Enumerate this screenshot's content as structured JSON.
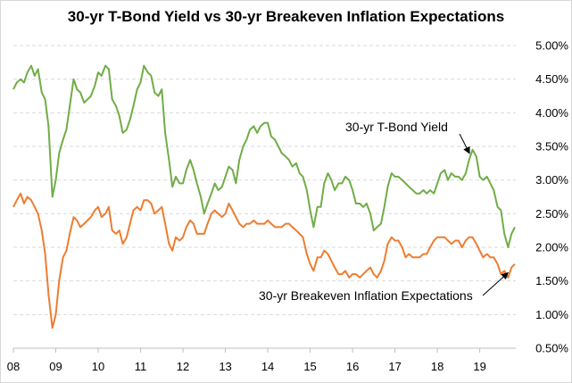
{
  "chart_data": {
    "type": "line",
    "title": "30-yr T-Bond Yield vs 30-yr Breakeven Inflation Expectations",
    "xlabel": "",
    "ylabel": "",
    "x_tick_labels": [
      "08",
      "09",
      "10",
      "11",
      "12",
      "13",
      "14",
      "15",
      "16",
      "17",
      "18",
      "19"
    ],
    "y_tick_labels": [
      "0.50%",
      "1.00%",
      "1.50%",
      "2.00%",
      "2.50%",
      "3.00%",
      "3.50%",
      "4.00%",
      "4.50%",
      "5.00%"
    ],
    "y_ticks": [
      0.5,
      1.0,
      1.5,
      2.0,
      2.5,
      3.0,
      3.5,
      4.0,
      4.5,
      5.0
    ],
    "xlim": [
      2008.0,
      2019.85
    ],
    "ylim": [
      0.5,
      5.0
    ],
    "grid": "horizontal dashed",
    "legend": "none (direct annotations)",
    "colors": {
      "bond": "#70ad47",
      "breakeven": "#ed7d31"
    },
    "series": [
      {
        "name": "30-yr T-Bond Yield",
        "x": [
          2008.0,
          2008.08,
          2008.17,
          2008.25,
          2008.33,
          2008.42,
          2008.5,
          2008.58,
          2008.67,
          2008.75,
          2008.83,
          2008.92,
          2009.0,
          2009.08,
          2009.17,
          2009.25,
          2009.33,
          2009.42,
          2009.5,
          2009.58,
          2009.67,
          2009.75,
          2009.83,
          2009.92,
          2010.0,
          2010.08,
          2010.17,
          2010.25,
          2010.33,
          2010.42,
          2010.5,
          2010.58,
          2010.67,
          2010.75,
          2010.83,
          2010.92,
          2011.0,
          2011.08,
          2011.17,
          2011.25,
          2011.33,
          2011.42,
          2011.5,
          2011.58,
          2011.67,
          2011.75,
          2011.83,
          2011.92,
          2012.0,
          2012.08,
          2012.17,
          2012.25,
          2012.33,
          2012.42,
          2012.5,
          2012.58,
          2012.67,
          2012.75,
          2012.83,
          2012.92,
          2013.0,
          2013.08,
          2013.17,
          2013.25,
          2013.33,
          2013.42,
          2013.5,
          2013.58,
          2013.67,
          2013.75,
          2013.83,
          2013.92,
          2014.0,
          2014.08,
          2014.17,
          2014.25,
          2014.33,
          2014.42,
          2014.5,
          2014.58,
          2014.67,
          2014.75,
          2014.83,
          2014.92,
          2015.0,
          2015.08,
          2015.17,
          2015.25,
          2015.33,
          2015.42,
          2015.5,
          2015.58,
          2015.67,
          2015.75,
          2015.83,
          2015.92,
          2016.0,
          2016.08,
          2016.17,
          2016.25,
          2016.33,
          2016.42,
          2016.5,
          2016.58,
          2016.67,
          2016.75,
          2016.83,
          2016.92,
          2017.0,
          2017.08,
          2017.17,
          2017.25,
          2017.33,
          2017.42,
          2017.5,
          2017.58,
          2017.67,
          2017.75,
          2017.83,
          2017.92,
          2018.0,
          2018.08,
          2018.17,
          2018.25,
          2018.33,
          2018.42,
          2018.5,
          2018.58,
          2018.67,
          2018.75,
          2018.83,
          2018.92,
          2019.0,
          2019.08,
          2019.17,
          2019.25,
          2019.33,
          2019.42,
          2019.5,
          2019.58,
          2019.67,
          2019.75,
          2019.83
        ],
        "values": [
          4.35,
          4.45,
          4.5,
          4.45,
          4.6,
          4.7,
          4.55,
          4.65,
          4.3,
          4.2,
          3.8,
          2.75,
          3.0,
          3.4,
          3.6,
          3.75,
          4.1,
          4.5,
          4.35,
          4.3,
          4.15,
          4.2,
          4.25,
          4.4,
          4.6,
          4.55,
          4.7,
          4.65,
          4.2,
          4.1,
          3.95,
          3.7,
          3.75,
          3.9,
          4.1,
          4.35,
          4.45,
          4.7,
          4.6,
          4.55,
          4.3,
          4.25,
          4.35,
          3.7,
          3.3,
          2.9,
          3.05,
          2.95,
          2.95,
          3.15,
          3.3,
          3.15,
          2.95,
          2.75,
          2.5,
          2.65,
          2.8,
          2.95,
          2.85,
          2.9,
          3.05,
          3.2,
          3.15,
          2.95,
          3.3,
          3.5,
          3.6,
          3.75,
          3.8,
          3.7,
          3.8,
          3.85,
          3.85,
          3.65,
          3.6,
          3.5,
          3.4,
          3.35,
          3.3,
          3.2,
          3.25,
          3.1,
          3.05,
          2.85,
          2.55,
          2.3,
          2.6,
          2.6,
          2.95,
          3.1,
          3.0,
          2.85,
          2.95,
          2.95,
          3.05,
          3.0,
          2.85,
          2.65,
          2.65,
          2.6,
          2.65,
          2.5,
          2.25,
          2.3,
          2.35,
          2.6,
          2.9,
          3.1,
          3.05,
          3.05,
          3.0,
          2.95,
          2.9,
          2.85,
          2.8,
          2.8,
          2.85,
          2.8,
          2.85,
          2.8,
          2.95,
          3.1,
          3.15,
          3.0,
          3.1,
          3.05,
          3.05,
          3.0,
          3.1,
          3.3,
          3.45,
          3.35,
          3.05,
          3.0,
          3.05,
          2.95,
          2.85,
          2.6,
          2.55,
          2.2,
          2.0,
          2.2,
          2.3
        ]
      },
      {
        "name": "30-yr Breakeven Inflation Expectations",
        "x": [
          2008.0,
          2008.08,
          2008.17,
          2008.25,
          2008.33,
          2008.42,
          2008.5,
          2008.58,
          2008.67,
          2008.75,
          2008.83,
          2008.92,
          2009.0,
          2009.08,
          2009.17,
          2009.25,
          2009.33,
          2009.42,
          2009.5,
          2009.58,
          2009.67,
          2009.75,
          2009.83,
          2009.92,
          2010.0,
          2010.08,
          2010.17,
          2010.25,
          2010.33,
          2010.42,
          2010.5,
          2010.58,
          2010.67,
          2010.75,
          2010.83,
          2010.92,
          2011.0,
          2011.08,
          2011.17,
          2011.25,
          2011.33,
          2011.42,
          2011.5,
          2011.58,
          2011.67,
          2011.75,
          2011.83,
          2011.92,
          2012.0,
          2012.08,
          2012.17,
          2012.25,
          2012.33,
          2012.42,
          2012.5,
          2012.58,
          2012.67,
          2012.75,
          2012.83,
          2012.92,
          2013.0,
          2013.08,
          2013.17,
          2013.25,
          2013.33,
          2013.42,
          2013.5,
          2013.58,
          2013.67,
          2013.75,
          2013.83,
          2013.92,
          2014.0,
          2014.08,
          2014.17,
          2014.25,
          2014.33,
          2014.42,
          2014.5,
          2014.58,
          2014.67,
          2014.75,
          2014.83,
          2014.92,
          2015.0,
          2015.08,
          2015.17,
          2015.25,
          2015.33,
          2015.42,
          2015.5,
          2015.58,
          2015.67,
          2015.75,
          2015.83,
          2015.92,
          2016.0,
          2016.08,
          2016.17,
          2016.25,
          2016.33,
          2016.42,
          2016.5,
          2016.58,
          2016.67,
          2016.75,
          2016.83,
          2016.92,
          2017.0,
          2017.08,
          2017.17,
          2017.25,
          2017.33,
          2017.42,
          2017.5,
          2017.58,
          2017.67,
          2017.75,
          2017.83,
          2017.92,
          2018.0,
          2018.08,
          2018.17,
          2018.25,
          2018.33,
          2018.42,
          2018.5,
          2018.58,
          2018.67,
          2018.75,
          2018.83,
          2018.92,
          2019.0,
          2019.08,
          2019.17,
          2019.25,
          2019.33,
          2019.42,
          2019.5,
          2019.58,
          2019.67,
          2019.75,
          2019.83
        ],
        "values": [
          2.6,
          2.7,
          2.8,
          2.65,
          2.75,
          2.7,
          2.6,
          2.5,
          2.25,
          1.9,
          1.3,
          0.8,
          1.0,
          1.5,
          1.85,
          1.95,
          2.2,
          2.45,
          2.4,
          2.3,
          2.35,
          2.4,
          2.45,
          2.55,
          2.6,
          2.45,
          2.5,
          2.6,
          2.25,
          2.2,
          2.25,
          2.05,
          2.15,
          2.35,
          2.55,
          2.6,
          2.55,
          2.7,
          2.7,
          2.65,
          2.5,
          2.55,
          2.6,
          2.35,
          2.05,
          1.95,
          2.15,
          2.1,
          2.15,
          2.3,
          2.4,
          2.35,
          2.2,
          2.2,
          2.2,
          2.35,
          2.5,
          2.55,
          2.5,
          2.45,
          2.5,
          2.65,
          2.55,
          2.45,
          2.35,
          2.3,
          2.35,
          2.35,
          2.4,
          2.35,
          2.35,
          2.35,
          2.4,
          2.35,
          2.3,
          2.3,
          2.3,
          2.35,
          2.35,
          2.3,
          2.25,
          2.2,
          2.15,
          1.9,
          1.75,
          1.65,
          1.85,
          1.85,
          1.95,
          1.9,
          1.8,
          1.7,
          1.6,
          1.6,
          1.65,
          1.55,
          1.6,
          1.6,
          1.55,
          1.6,
          1.65,
          1.7,
          1.6,
          1.55,
          1.65,
          1.8,
          2.05,
          2.15,
          2.1,
          2.1,
          2.0,
          1.85,
          1.9,
          1.85,
          1.85,
          1.85,
          1.9,
          1.9,
          2.0,
          2.1,
          2.15,
          2.15,
          2.15,
          2.1,
          2.05,
          2.1,
          2.1,
          2.0,
          2.1,
          2.15,
          2.15,
          2.05,
          1.95,
          1.85,
          1.9,
          1.85,
          1.85,
          1.75,
          1.6,
          1.65,
          1.55,
          1.7,
          1.75
        ]
      }
    ],
    "annotations": [
      {
        "text": "30-yr T-Bond Yield",
        "series": 0,
        "x": 2018.8,
        "y": 3.45
      },
      {
        "text": "30-yr Breakeven Inflation Expectations",
        "series": 1,
        "x": 2019.75,
        "y": 1.7
      }
    ]
  }
}
